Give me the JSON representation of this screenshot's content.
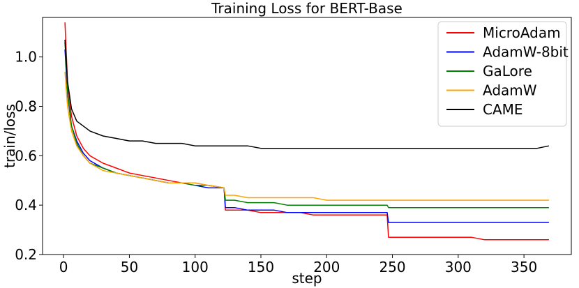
{
  "chart_data": {
    "type": "line",
    "title": "Training Loss for BERT-Base",
    "xlabel": "step",
    "ylabel": "train/loss",
    "xlim": [
      -16,
      386
    ],
    "ylim": [
      0.2,
      1.16
    ],
    "xticks": [
      0,
      50,
      100,
      150,
      200,
      250,
      300,
      350
    ],
    "yticks": [
      0.2,
      0.4,
      0.6,
      0.8,
      1.0
    ],
    "ytick_labels": [
      "0.2",
      "0.4",
      "0.6",
      "0.8",
      "1.0"
    ],
    "legend_position": "top-right",
    "series": [
      {
        "name": "MicroAdam",
        "color": "#ff0000",
        "x": [
          1,
          3,
          6,
          10,
          15,
          20,
          30,
          40,
          50,
          60,
          70,
          80,
          90,
          100,
          110,
          122,
          123,
          130,
          140,
          150,
          160,
          170,
          180,
          190,
          200,
          210,
          220,
          230,
          240,
          246,
          247,
          250,
          260,
          270,
          280,
          290,
          300,
          310,
          320,
          330,
          340,
          350,
          360,
          369
        ],
        "y": [
          1.14,
          0.9,
          0.76,
          0.68,
          0.63,
          0.6,
          0.57,
          0.55,
          0.53,
          0.52,
          0.51,
          0.5,
          0.49,
          0.49,
          0.48,
          0.47,
          0.38,
          0.38,
          0.38,
          0.37,
          0.37,
          0.37,
          0.37,
          0.36,
          0.36,
          0.36,
          0.36,
          0.36,
          0.36,
          0.36,
          0.27,
          0.27,
          0.27,
          0.27,
          0.27,
          0.27,
          0.27,
          0.27,
          0.26,
          0.26,
          0.26,
          0.26,
          0.26,
          0.26
        ]
      },
      {
        "name": "AdamW-8bit",
        "color": "#0000ff",
        "x": [
          1,
          3,
          6,
          10,
          15,
          20,
          30,
          40,
          50,
          60,
          70,
          80,
          90,
          100,
          110,
          122,
          123,
          130,
          140,
          150,
          160,
          170,
          180,
          190,
          200,
          210,
          220,
          230,
          240,
          246,
          247,
          250,
          260,
          270,
          280,
          290,
          300,
          310,
          320,
          330,
          340,
          350,
          360,
          369
        ],
        "y": [
          1.03,
          0.85,
          0.72,
          0.66,
          0.61,
          0.58,
          0.55,
          0.53,
          0.52,
          0.51,
          0.5,
          0.49,
          0.49,
          0.48,
          0.47,
          0.47,
          0.39,
          0.39,
          0.38,
          0.38,
          0.38,
          0.37,
          0.37,
          0.37,
          0.37,
          0.37,
          0.37,
          0.37,
          0.37,
          0.37,
          0.33,
          0.33,
          0.33,
          0.33,
          0.33,
          0.33,
          0.33,
          0.33,
          0.33,
          0.33,
          0.33,
          0.33,
          0.33,
          0.33
        ]
      },
      {
        "name": "GaLore",
        "color": "#008000",
        "x": [
          1,
          3,
          6,
          10,
          15,
          20,
          30,
          40,
          50,
          60,
          70,
          80,
          90,
          100,
          110,
          122,
          123,
          130,
          140,
          150,
          160,
          170,
          180,
          190,
          200,
          210,
          220,
          230,
          240,
          246,
          247,
          250,
          260,
          270,
          280,
          290,
          300,
          310,
          320,
          330,
          340,
          350,
          360,
          369
        ],
        "y": [
          1.06,
          0.86,
          0.72,
          0.65,
          0.6,
          0.57,
          0.55,
          0.53,
          0.52,
          0.51,
          0.5,
          0.49,
          0.49,
          0.48,
          0.48,
          0.47,
          0.42,
          0.42,
          0.41,
          0.41,
          0.41,
          0.4,
          0.4,
          0.4,
          0.4,
          0.4,
          0.4,
          0.4,
          0.4,
          0.4,
          0.39,
          0.39,
          0.39,
          0.39,
          0.39,
          0.39,
          0.39,
          0.39,
          0.39,
          0.39,
          0.39,
          0.39,
          0.39,
          0.39
        ]
      },
      {
        "name": "AdamW",
        "color": "#ffa500",
        "x": [
          1,
          3,
          6,
          10,
          15,
          20,
          30,
          40,
          50,
          60,
          70,
          80,
          90,
          100,
          110,
          122,
          123,
          130,
          140,
          150,
          160,
          170,
          180,
          190,
          200,
          210,
          220,
          230,
          240,
          246,
          247,
          250,
          260,
          270,
          280,
          290,
          300,
          310,
          320,
          330,
          340,
          350,
          360,
          369
        ],
        "y": [
          0.94,
          0.8,
          0.7,
          0.64,
          0.6,
          0.57,
          0.54,
          0.53,
          0.52,
          0.51,
          0.5,
          0.49,
          0.49,
          0.49,
          0.48,
          0.47,
          0.44,
          0.44,
          0.43,
          0.43,
          0.43,
          0.43,
          0.43,
          0.43,
          0.42,
          0.42,
          0.42,
          0.42,
          0.42,
          0.42,
          0.42,
          0.42,
          0.42,
          0.42,
          0.42,
          0.42,
          0.42,
          0.42,
          0.42,
          0.42,
          0.42,
          0.42,
          0.42,
          0.42
        ]
      },
      {
        "name": "CAME",
        "color": "#000000",
        "x": [
          1,
          3,
          6,
          10,
          15,
          20,
          30,
          40,
          50,
          60,
          70,
          80,
          90,
          100,
          110,
          122,
          130,
          140,
          150,
          160,
          170,
          180,
          190,
          200,
          210,
          220,
          230,
          240,
          250,
          260,
          270,
          280,
          290,
          300,
          310,
          320,
          330,
          340,
          350,
          360,
          369
        ],
        "y": [
          1.07,
          0.9,
          0.79,
          0.74,
          0.72,
          0.7,
          0.68,
          0.67,
          0.66,
          0.66,
          0.65,
          0.65,
          0.65,
          0.64,
          0.64,
          0.64,
          0.64,
          0.64,
          0.63,
          0.63,
          0.63,
          0.63,
          0.63,
          0.63,
          0.63,
          0.63,
          0.63,
          0.63,
          0.63,
          0.63,
          0.63,
          0.63,
          0.63,
          0.63,
          0.63,
          0.63,
          0.63,
          0.63,
          0.63,
          0.63,
          0.64
        ]
      }
    ]
  }
}
